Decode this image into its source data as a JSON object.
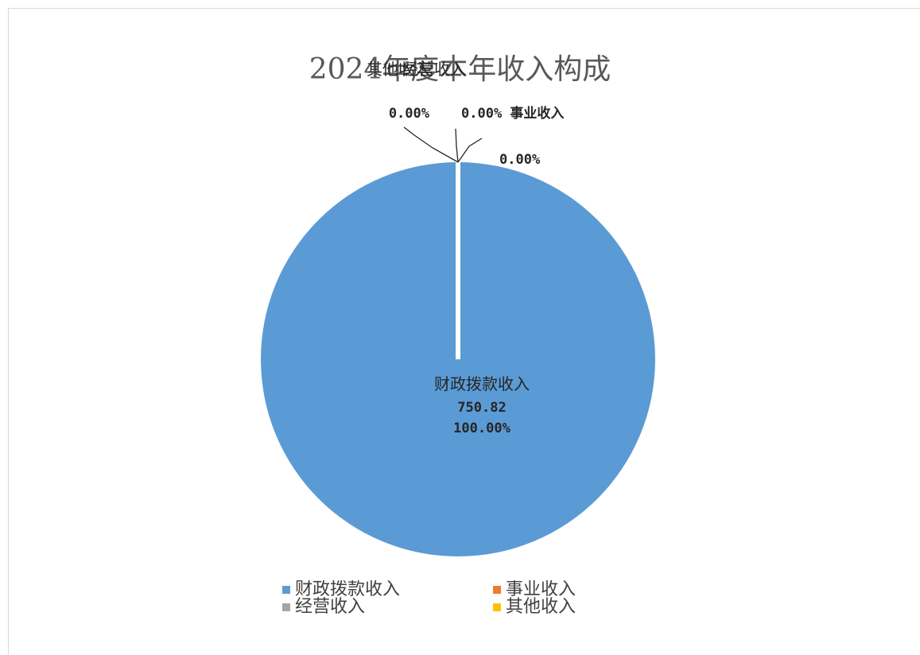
{
  "chart_data": {
    "type": "pie",
    "title": "2024年度本年收入构成",
    "categories": [
      "财政拨款收入",
      "事业收入",
      "经营收入",
      "其他收入"
    ],
    "values": [
      750.82,
      0,
      0,
      0
    ],
    "percent_labels": [
      "100.00%",
      "0.00%",
      "0.00%",
      "0.00%"
    ],
    "value_labels": [
      "750.82",
      "",
      "",
      ""
    ],
    "colors": [
      "#5B9BD5",
      "#ED7D31",
      "#A5A5A5",
      "#FFC000"
    ],
    "legend": "bottom"
  }
}
